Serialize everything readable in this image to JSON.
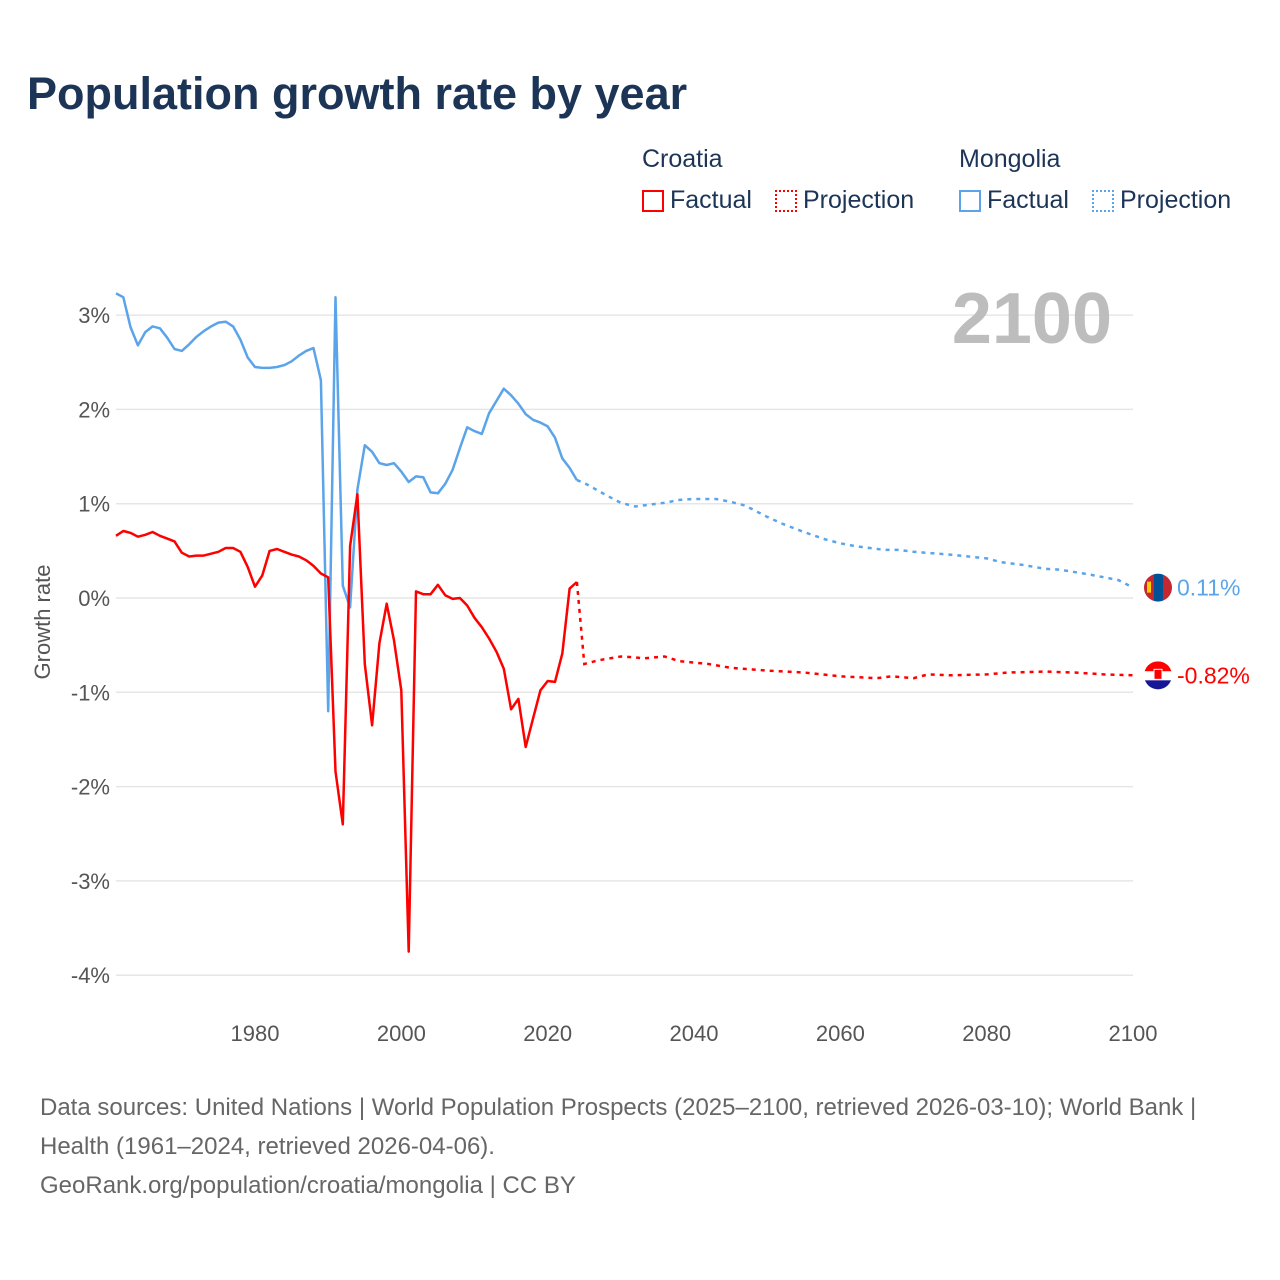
{
  "title": "Population growth rate by year",
  "legend": {
    "groups": [
      {
        "name": "Croatia",
        "factual": "Factual",
        "projection": "Projection",
        "color": "#ff0000"
      },
      {
        "name": "Mongolia",
        "factual": "Factual",
        "projection": "Projection",
        "color": "#5ba4ea"
      }
    ]
  },
  "footer": {
    "sources": "Data sources: United Nations | World Population Prospects (2025–2100, retrieved 2026-03-10); World Bank | Health (1961–2024, retrieved 2026-04-06).",
    "link": "GeoRank.org/population/croatia/mongolia | CC BY"
  },
  "chart_data": {
    "type": "line",
    "title": "Population growth rate by year",
    "ylabel": "Growth rate",
    "xlabel": "",
    "xlim": [
      1961,
      2100
    ],
    "ylim": [
      -4.2,
      3.4
    ],
    "x_ticks": [
      1980,
      2000,
      2020,
      2040,
      2060,
      2080,
      2100
    ],
    "y_ticks": [
      3,
      2,
      1,
      0,
      -1,
      -2,
      -3,
      -4
    ],
    "y_tick_labels": [
      "3%",
      "2%",
      "1%",
      "0%",
      "-1%",
      "-2%",
      "-3%",
      "-4%"
    ],
    "year_label": "2100",
    "grid": true,
    "legend_position": "top-right",
    "series": [
      {
        "name": "Mongolia",
        "color": "#5ba4ea",
        "end_label": "0.11%",
        "factual": {
          "x": [
            1961,
            1962,
            1963,
            1964,
            1965,
            1966,
            1967,
            1968,
            1969,
            1970,
            1971,
            1972,
            1973,
            1974,
            1975,
            1976,
            1977,
            1978,
            1979,
            1980,
            1981,
            1982,
            1983,
            1984,
            1985,
            1986,
            1987,
            1988,
            1989,
            1990,
            1991,
            1992,
            1993,
            1994,
            1995,
            1996,
            1997,
            1998,
            1999,
            2000,
            2001,
            2002,
            2003,
            2004,
            2005,
            2006,
            2007,
            2008,
            2009,
            2010,
            2011,
            2012,
            2013,
            2014,
            2015,
            2016,
            2017,
            2018,
            2019,
            2020,
            2021,
            2022,
            2023,
            2024
          ],
          "y": [
            3.23,
            3.19,
            2.87,
            2.68,
            2.82,
            2.88,
            2.86,
            2.76,
            2.64,
            2.62,
            2.69,
            2.77,
            2.83,
            2.88,
            2.92,
            2.93,
            2.88,
            2.74,
            2.55,
            2.45,
            2.44,
            2.44,
            2.45,
            2.47,
            2.51,
            2.57,
            2.62,
            2.65,
            2.31,
            -1.2,
            3.19,
            0.13,
            -0.1,
            1.15,
            1.62,
            1.55,
            1.43,
            1.41,
            1.43,
            1.34,
            1.23,
            1.29,
            1.28,
            1.12,
            1.11,
            1.21,
            1.36,
            1.59,
            1.81,
            1.77,
            1.74,
            1.96,
            2.09,
            2.22,
            2.15,
            2.06,
            1.95,
            1.89,
            1.86,
            1.82,
            1.7,
            1.48,
            1.38,
            1.25
          ]
        },
        "projection": {
          "x": [
            2024,
            2025,
            2028,
            2030,
            2032,
            2034,
            2036,
            2038,
            2040,
            2043,
            2045,
            2047,
            2050,
            2052,
            2055,
            2058,
            2060,
            2062,
            2066,
            2068,
            2070,
            2075,
            2080,
            2082,
            2085,
            2088,
            2090,
            2094,
            2098,
            2100
          ],
          "y": [
            1.25,
            1.22,
            1.09,
            1.01,
            0.97,
            0.99,
            1.01,
            1.04,
            1.05,
            1.05,
            1.02,
            0.98,
            0.86,
            0.79,
            0.7,
            0.62,
            0.58,
            0.55,
            0.51,
            0.51,
            0.49,
            0.46,
            0.42,
            0.38,
            0.35,
            0.31,
            0.3,
            0.25,
            0.19,
            0.11
          ]
        }
      },
      {
        "name": "Croatia",
        "color": "#ff0000",
        "end_label": "-0.82%",
        "factual": {
          "x": [
            1961,
            1962,
            1963,
            1964,
            1965,
            1966,
            1967,
            1968,
            1969,
            1970,
            1971,
            1972,
            1973,
            1974,
            1975,
            1976,
            1977,
            1978,
            1979,
            1980,
            1981,
            1982,
            1983,
            1984,
            1985,
            1986,
            1987,
            1988,
            1989,
            1990,
            1991,
            1992,
            1993,
            1994,
            1995,
            1996,
            1997,
            1998,
            1999,
            2000,
            2001,
            2002,
            2003,
            2004,
            2005,
            2006,
            2007,
            2008,
            2009,
            2010,
            2011,
            2012,
            2013,
            2014,
            2015,
            2016,
            2017,
            2018,
            2019,
            2020,
            2021,
            2022,
            2023,
            2024
          ],
          "y": [
            0.66,
            0.71,
            0.69,
            0.65,
            0.67,
            0.7,
            0.66,
            0.63,
            0.6,
            0.48,
            0.44,
            0.45,
            0.45,
            0.47,
            0.49,
            0.53,
            0.53,
            0.49,
            0.33,
            0.12,
            0.24,
            0.5,
            0.52,
            0.49,
            0.46,
            0.44,
            0.4,
            0.34,
            0.26,
            0.22,
            -1.84,
            -2.4,
            0.55,
            1.1,
            -0.7,
            -1.35,
            -0.48,
            -0.06,
            -0.45,
            -0.98,
            -3.75,
            0.07,
            0.04,
            0.04,
            0.14,
            0.03,
            -0.01,
            0.0,
            -0.08,
            -0.21,
            -0.31,
            -0.43,
            -0.57,
            -0.75,
            -1.18,
            -1.07,
            -1.58,
            -1.28,
            -0.98,
            -0.88,
            -0.89,
            -0.59,
            0.1,
            0.17
          ]
        },
        "projection": {
          "x": [
            2024,
            2025,
            2027,
            2030,
            2032,
            2033,
            2036,
            2038,
            2042,
            2045,
            2050,
            2055,
            2060,
            2065,
            2067,
            2070,
            2072,
            2075,
            2080,
            2083,
            2088,
            2092,
            2096,
            2100
          ],
          "y": [
            0.17,
            -0.7,
            -0.66,
            -0.62,
            -0.63,
            -0.64,
            -0.62,
            -0.67,
            -0.7,
            -0.74,
            -0.77,
            -0.79,
            -0.83,
            -0.85,
            -0.83,
            -0.85,
            -0.81,
            -0.82,
            -0.81,
            -0.79,
            -0.78,
            -0.79,
            -0.81,
            -0.82
          ]
        }
      }
    ]
  }
}
